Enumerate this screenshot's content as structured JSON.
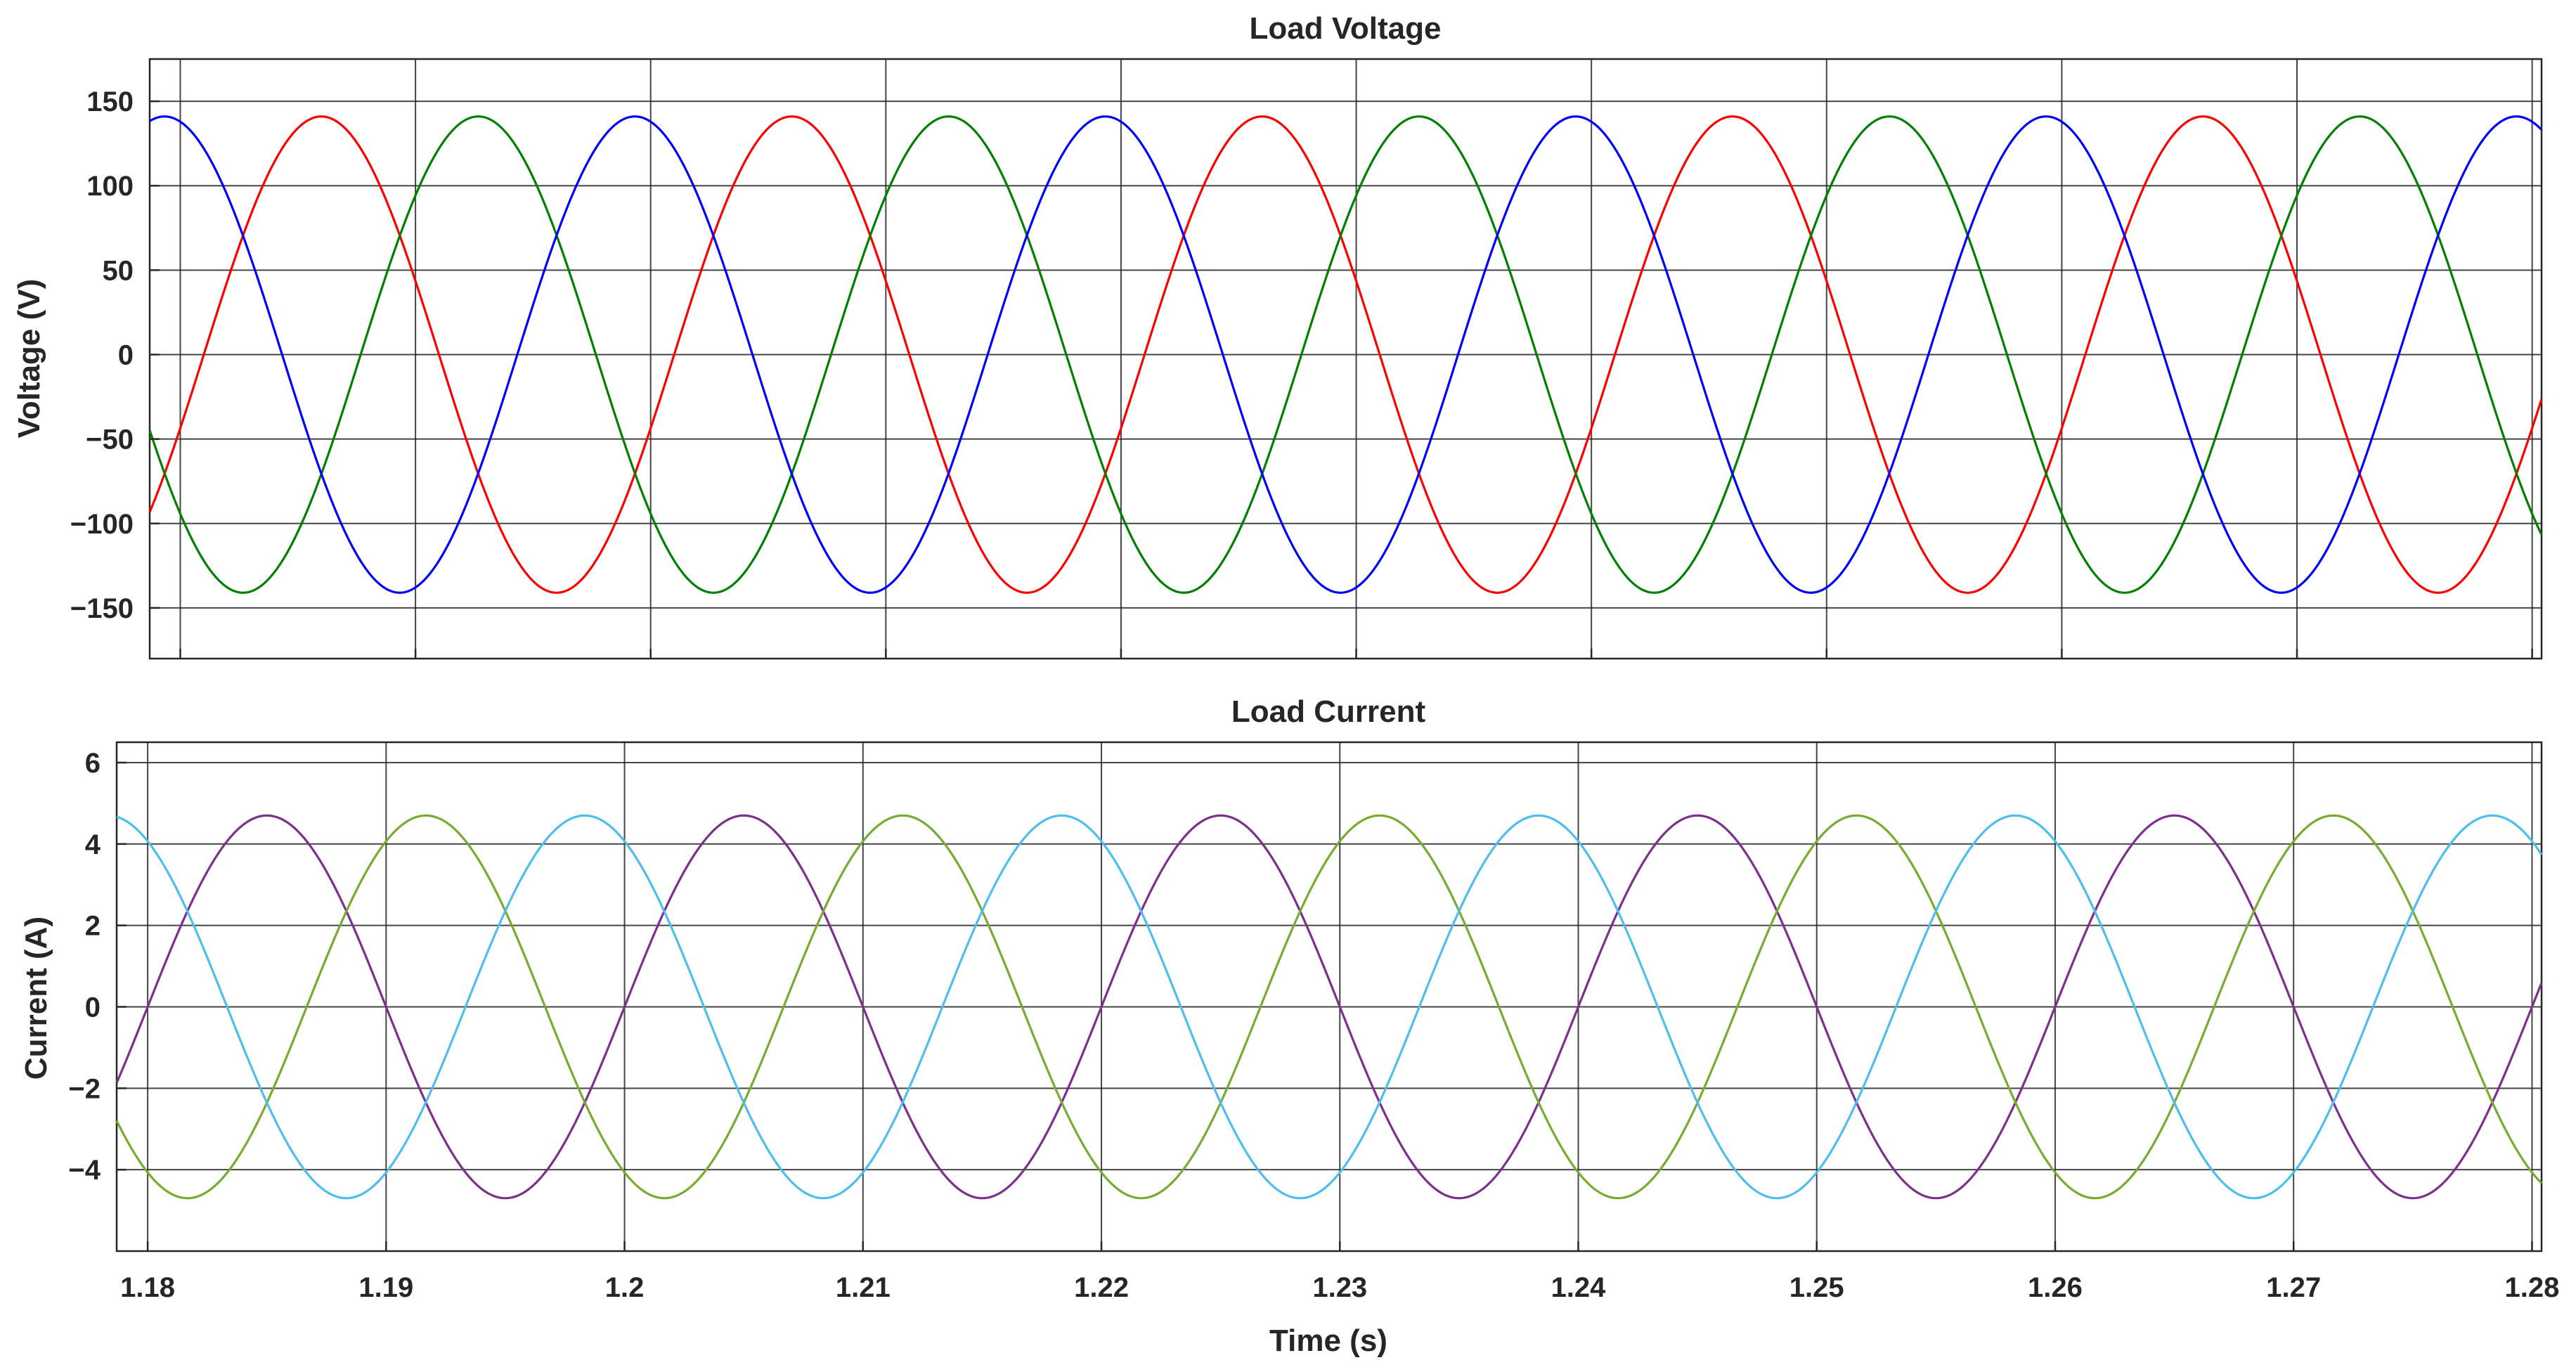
{
  "chart_data": [
    {
      "type": "line",
      "title": "Load Voltage",
      "xlabel": "",
      "ylabel": "Voltage (V)",
      "xlim": [
        1.1787,
        1.2804
      ],
      "ylim": [
        -180,
        175
      ],
      "yticks": [
        -150,
        -100,
        -50,
        0,
        50,
        100,
        150
      ],
      "ytick_labels": [
        "−150",
        "−100",
        "−50",
        "0",
        "50",
        "100",
        "150"
      ],
      "xticks": [
        1.18,
        1.19,
        1.2,
        1.21,
        1.22,
        1.23,
        1.24,
        1.25,
        1.26,
        1.27,
        1.28
      ],
      "xtick_labels": [
        "",
        "",
        "",
        "",
        "",
        "",
        "",
        "",
        "",
        "",
        ""
      ],
      "grid": true,
      "waveform": {
        "amplitude": 141,
        "frequency_hz": 50,
        "time_range": [
          1.1787,
          1.2804
        ]
      },
      "series": [
        {
          "color": "#ff0000",
          "zero_crossing_rising": 1.181
        },
        {
          "color": "#008000",
          "zero_crossing_rising": 1.18767
        },
        {
          "color": "#0000ff",
          "zero_crossing_rising": 1.19433
        }
      ]
    },
    {
      "type": "line",
      "title": "Load Current",
      "xlabel": "Time (s)",
      "ylabel": "Current (A)",
      "xlim": [
        1.1787,
        1.2804
      ],
      "ylim": [
        -6,
        6.5
      ],
      "yticks": [
        -4,
        -2,
        0,
        2,
        4,
        6
      ],
      "ytick_labels": [
        "−4",
        "−2",
        "0",
        "2",
        "4",
        "6"
      ],
      "xticks": [
        1.18,
        1.19,
        1.2,
        1.21,
        1.22,
        1.23,
        1.24,
        1.25,
        1.26,
        1.27,
        1.28
      ],
      "xtick_labels": [
        "1.18",
        "1.19",
        "1.2",
        "1.21",
        "1.22",
        "1.23",
        "1.24",
        "1.25",
        "1.26",
        "1.27",
        "1.28"
      ],
      "grid": true,
      "waveform": {
        "amplitude": 4.7,
        "frequency_hz": 50,
        "time_range": [
          1.1787,
          1.2804
        ]
      },
      "series": [
        {
          "color": "#7e2f8e",
          "zero_crossing_rising": 1.18
        },
        {
          "color": "#77ac30",
          "zero_crossing_rising": 1.18667
        },
        {
          "color": "#4dbeee",
          "zero_crossing_rising": 1.19333
        }
      ]
    }
  ]
}
